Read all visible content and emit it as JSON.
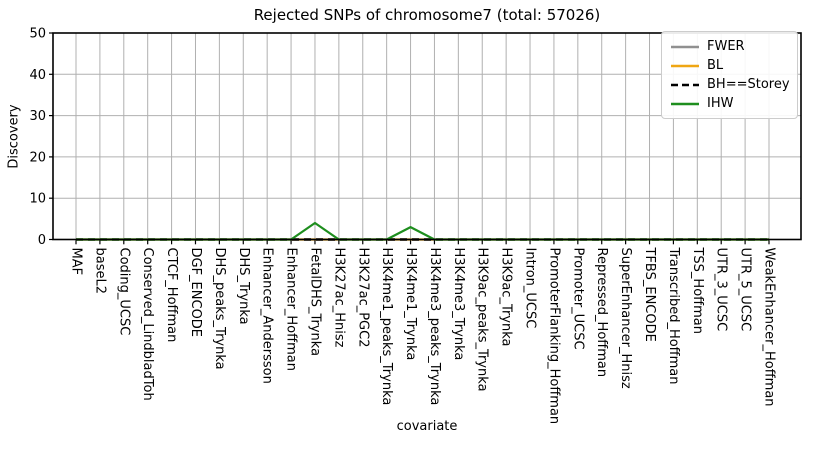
{
  "chart_data": {
    "type": "line",
    "title": "Rejected SNPs of chromosome7 (total: 57026)",
    "xlabel": "covariate",
    "ylabel": "Discovery",
    "ylim": [
      0,
      50
    ],
    "yticks": [
      0,
      10,
      20,
      30,
      40,
      50
    ],
    "grid": true,
    "legend_position": "upper right",
    "grid_color": "#b0b0b0",
    "axis_color": "#000000",
    "categories": [
      "MAF",
      "baseL2",
      "Coding_UCSC",
      "Conserved_LindbladToh",
      "CTCF_Hoffman",
      "DGF_ENCODE",
      "DHS_peaks_Trynka",
      "DHS_Trynka",
      "Enhancer_Andersson",
      "Enhancer_Hoffman",
      "FetalDHS_Trynka",
      "H3K27ac_Hnisz",
      "H3K27ac_PGC2",
      "H3K4me1_peaks_Trynka",
      "H3K4me1_Trynka",
      "H3K4me3_peaks_Trynka",
      "H3K4me3_Trynka",
      "H3K9ac_peaks_Trynka",
      "H3K9ac_Trynka",
      "Intron_UCSC",
      "PromoterFlanking_Hoffman",
      "Promoter_UCSC",
      "Repressed_Hoffman",
      "SuperEnhancer_Hnisz",
      "TFBS_ENCODE",
      "Transcribed_Hoffman",
      "TSS_Hoffman",
      "UTR_3_UCSC",
      "UTR_5_UCSC",
      "WeakEnhancer_Hoffman"
    ],
    "series": [
      {
        "name": "FWER",
        "color": "#909090",
        "style": "solid",
        "values": [
          0,
          0,
          0,
          0,
          0,
          0,
          0,
          0,
          0,
          0,
          0,
          0,
          0,
          0,
          0,
          0,
          0,
          0,
          0,
          0,
          0,
          0,
          0,
          0,
          0,
          0,
          0,
          0,
          0,
          0
        ]
      },
      {
        "name": "BL",
        "color": "#EFA613",
        "style": "solid",
        "values": [
          0,
          0,
          0,
          0,
          0,
          0,
          0,
          0,
          0,
          0,
          0,
          0,
          0,
          0,
          0,
          0,
          0,
          0,
          0,
          0,
          0,
          0,
          0,
          0,
          0,
          0,
          0,
          0,
          0,
          0
        ]
      },
      {
        "name": "BH==Storey",
        "color": "#000000",
        "style": "dashed",
        "values": [
          0,
          0,
          0,
          0,
          0,
          0,
          0,
          0,
          0,
          0,
          0,
          0,
          0,
          0,
          0,
          0,
          0,
          0,
          0,
          0,
          0,
          0,
          0,
          0,
          0,
          0,
          0,
          0,
          0,
          0
        ]
      },
      {
        "name": "IHW",
        "color": "#1E8E1E",
        "style": "solid",
        "values": [
          0,
          0,
          0,
          0,
          0,
          0,
          0,
          0,
          0,
          0,
          4,
          0,
          0,
          0,
          3,
          0,
          0,
          0,
          0,
          0,
          0,
          0,
          0,
          0,
          0,
          0,
          0,
          0,
          0,
          0
        ]
      }
    ]
  }
}
